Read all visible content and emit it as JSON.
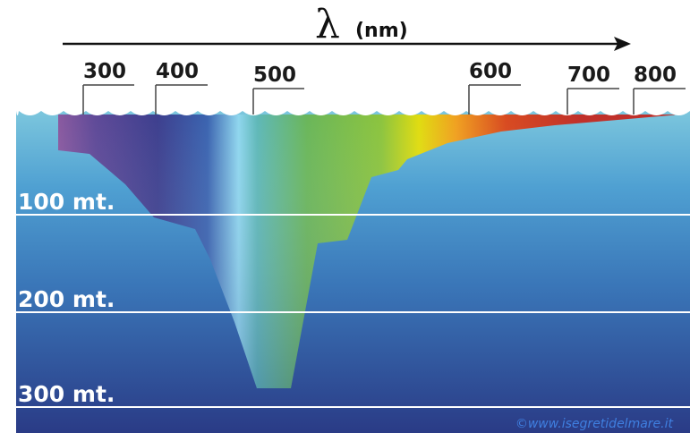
{
  "axis": {
    "symbol": "λ",
    "unit": "(nm)"
  },
  "wavelength_labels": [
    "300",
    "400",
    "500",
    "600",
    "700",
    "800"
  ],
  "depth_labels": [
    "100 mt.",
    "200 mt.",
    "300 mt."
  ],
  "credit": "©www.isegretidelmare.it",
  "colors": {
    "sky": "#ffffff",
    "water_top": "#7cc6dc",
    "water_mid": "#3b84c0",
    "water_bottom": "#2b3f8a",
    "wave_caps": "#ffffff",
    "depth_lines": "#ffffff",
    "credit": "#3f7fe0"
  },
  "icons": {
    "axis_arrow": "arrow-right-icon",
    "waves": "wave-icon"
  }
}
